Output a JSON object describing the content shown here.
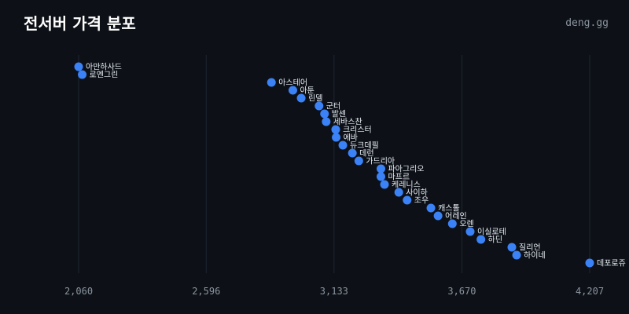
{
  "header": {
    "title": "전서버 가격 분포",
    "brand": "deng.gg"
  },
  "colors": {
    "background": "#0d1117",
    "point": "#3b82f6",
    "grid": "#1f2630",
    "text": "#e6edf3",
    "muted": "#8b949e"
  },
  "chart_data": {
    "type": "scatter",
    "title": "전서버 가격 분포",
    "xlabel": "",
    "ylabel": "",
    "xlim": [
      1923,
      4250
    ],
    "x_ticks": [
      2060,
      2596,
      3133,
      3670,
      4207
    ],
    "x_tick_labels": [
      "2,060",
      "2,596",
      "3,133",
      "3,670",
      "4,207"
    ],
    "grid": "vertical",
    "y_axis": "rank (descending price order), no labels",
    "points": [
      {
        "label": "아만하사드",
        "x": 2060
      },
      {
        "label": "로엔그린",
        "x": 2075
      },
      {
        "label": "아스테어",
        "x": 2870
      },
      {
        "label": "아툰",
        "x": 2960
      },
      {
        "label": "린델",
        "x": 2995
      },
      {
        "label": "군터",
        "x": 3070
      },
      {
        "label": "발센",
        "x": 3093
      },
      {
        "label": "세바스찬",
        "x": 3100
      },
      {
        "label": "크리스터",
        "x": 3140
      },
      {
        "label": "에바",
        "x": 3142
      },
      {
        "label": "듀크데필",
        "x": 3170
      },
      {
        "label": "데런",
        "x": 3210
      },
      {
        "label": "가드리아",
        "x": 3237
      },
      {
        "label": "파아그리오",
        "x": 3330
      },
      {
        "label": "마프르",
        "x": 3330
      },
      {
        "label": "케레니스",
        "x": 3345
      },
      {
        "label": "사이하",
        "x": 3405
      },
      {
        "label": "조우",
        "x": 3440
      },
      {
        "label": "캐스톨",
        "x": 3540
      },
      {
        "label": "어레인",
        "x": 3570
      },
      {
        "label": "오렌",
        "x": 3630
      },
      {
        "label": "이실로테",
        "x": 3705
      },
      {
        "label": "하딘",
        "x": 3750
      },
      {
        "label": "질리언",
        "x": 3880
      },
      {
        "label": "하이네",
        "x": 3900
      },
      {
        "label": "데포로쥬",
        "x": 4207
      }
    ]
  }
}
